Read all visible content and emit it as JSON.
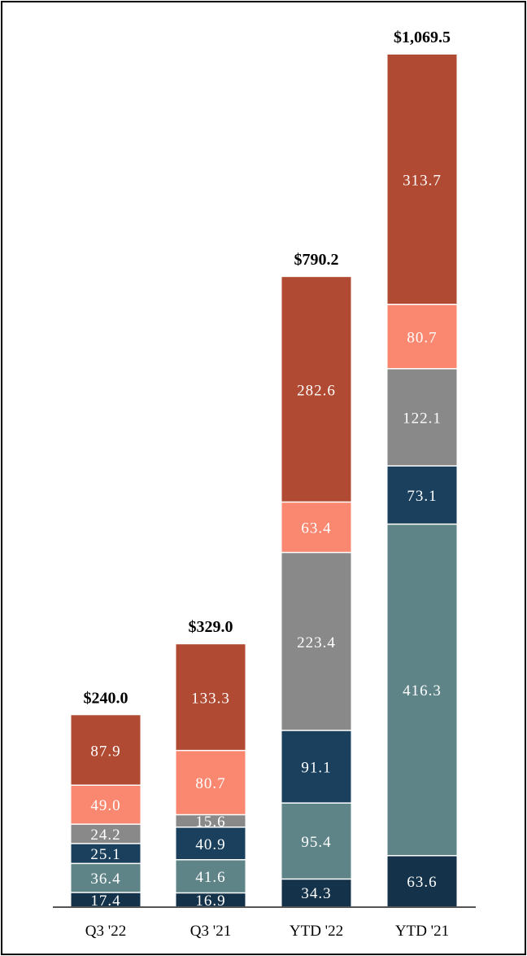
{
  "chart_data": {
    "type": "bar",
    "stacked": true,
    "categories": [
      "Q3 '22",
      "Q3 '21",
      "YTD '22",
      "YTD '21"
    ],
    "totals": [
      "$240.0",
      "$329.0",
      "$790.2",
      "$1,069.5"
    ],
    "series": [
      {
        "name": "segment-1",
        "color": "#14334a",
        "values": [
          17.4,
          16.9,
          34.3,
          63.6
        ],
        "labels": [
          "17.4",
          "16.9",
          "34.3",
          "63.6"
        ]
      },
      {
        "name": "segment-2",
        "color": "#5e8488",
        "values": [
          36.4,
          41.6,
          95.4,
          416.3
        ],
        "labels": [
          "36.4",
          "41.6",
          "95.4",
          "416.3"
        ]
      },
      {
        "name": "segment-3",
        "color": "#1a405e",
        "values": [
          25.1,
          40.9,
          91.1,
          73.1
        ],
        "labels": [
          "25.1",
          "40.9",
          "91.1",
          "73.1"
        ]
      },
      {
        "name": "segment-4",
        "color": "#898989",
        "values": [
          24.2,
          15.6,
          223.4,
          122.1
        ],
        "labels": [
          "24.2",
          "15.6",
          "223.4",
          "122.1"
        ]
      },
      {
        "name": "segment-5",
        "color": "#fa8870",
        "values": [
          49.0,
          80.7,
          63.4,
          80.7
        ],
        "labels": [
          "49.0",
          "80.7",
          "63.4",
          "80.7"
        ]
      },
      {
        "name": "segment-6",
        "color": "#b04a32",
        "values": [
          87.9,
          133.3,
          282.6,
          313.7
        ],
        "labels": [
          "87.9",
          "133.3",
          "282.6",
          "313.7"
        ]
      }
    ],
    "ylim": [
      0,
      1069.5
    ],
    "grid": false,
    "legend": "none"
  }
}
